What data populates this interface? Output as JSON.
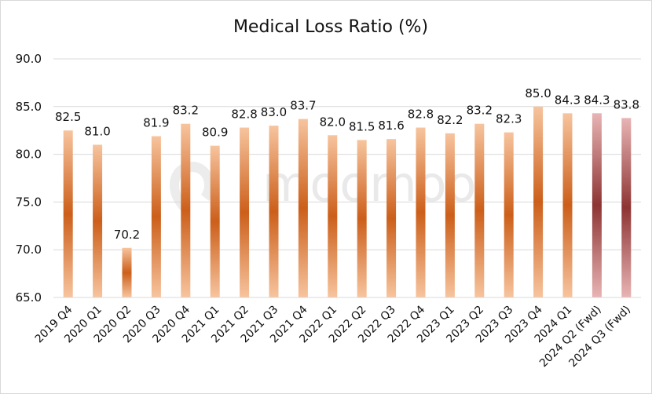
{
  "chart_data": {
    "type": "bar",
    "title": "Medical Loss Ratio (%)",
    "xlabel": "",
    "ylabel": "",
    "ylim": [
      65,
      90
    ],
    "yticks": [
      "65.0",
      "70.0",
      "75.0",
      "80.0",
      "85.0",
      "90.0"
    ],
    "grid": true,
    "categories": [
      "2019 Q4",
      "2020 Q1",
      "2020 Q2",
      "2020 Q3",
      "2020 Q4",
      "2021 Q1",
      "2021 Q2",
      "2021 Q3",
      "2021 Q4",
      "2022 Q1",
      "2022 Q2",
      "2022 Q3",
      "2022 Q4",
      "2023 Q1",
      "2023 Q2",
      "2023 Q3",
      "2023 Q4",
      "2024 Q1",
      "2024 Q2 (Fwd)",
      "2024 Q3 (Fwd)"
    ],
    "values": [
      82.5,
      81.0,
      70.2,
      81.9,
      83.2,
      80.9,
      82.8,
      83.0,
      83.7,
      82.0,
      81.5,
      81.6,
      82.8,
      82.2,
      83.2,
      82.3,
      85.0,
      84.3,
      84.3,
      83.8
    ],
    "data_labels": [
      "82.5",
      "81.0",
      "70.2",
      "81.9",
      "83.2",
      "80.9",
      "82.8",
      "83.0",
      "83.7",
      "82.0",
      "81.5",
      "81.6",
      "82.8",
      "82.2",
      "83.2",
      "82.3",
      "85.0",
      "84.3",
      "84.3",
      "83.8"
    ],
    "forward": [
      false,
      false,
      false,
      false,
      false,
      false,
      false,
      false,
      false,
      false,
      false,
      false,
      false,
      false,
      false,
      false,
      false,
      false,
      true,
      true
    ],
    "colors": {
      "actual_edge": "#f7c49e",
      "actual_mid": "#cc5f1a",
      "forward_edge": "#e8b4b4",
      "forward_mid": "#8e3434",
      "grid": "#d9d9d9"
    }
  },
  "watermark": {
    "brand": "moomoo"
  }
}
